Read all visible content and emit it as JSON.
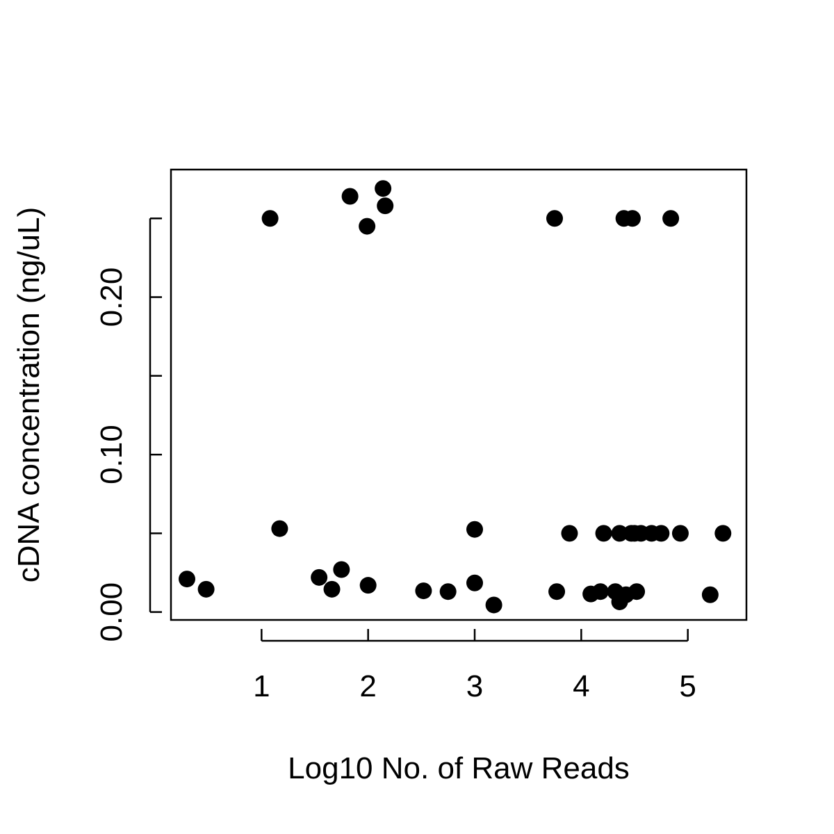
{
  "chart_data": {
    "type": "scatter",
    "title": "",
    "xlabel": "Log10 No. of Raw Reads",
    "ylabel": "cDNA concentration (ng/uL)",
    "xlim": [
      0.15,
      5.55
    ],
    "ylim": [
      -0.005,
      0.281
    ],
    "x_ticks": [
      1,
      2,
      3,
      4,
      5
    ],
    "x_tick_labels": [
      "1",
      "2",
      "3",
      "4",
      "5"
    ],
    "y_ticks": [
      0.0,
      0.05,
      0.1,
      0.15,
      0.2,
      0.25
    ],
    "y_tick_labels": [
      "0.00",
      "",
      "0.10",
      "",
      "0.20",
      ""
    ],
    "grid": false,
    "point_color": "#000000",
    "points": [
      {
        "x": 0.3,
        "y": 0.021
      },
      {
        "x": 0.48,
        "y": 0.0145
      },
      {
        "x": 1.08,
        "y": 0.25
      },
      {
        "x": 1.17,
        "y": 0.053
      },
      {
        "x": 1.54,
        "y": 0.022
      },
      {
        "x": 1.66,
        "y": 0.0145
      },
      {
        "x": 1.75,
        "y": 0.027
      },
      {
        "x": 1.83,
        "y": 0.264
      },
      {
        "x": 1.99,
        "y": 0.245
      },
      {
        "x": 2.0,
        "y": 0.017
      },
      {
        "x": 2.14,
        "y": 0.269
      },
      {
        "x": 2.16,
        "y": 0.258
      },
      {
        "x": 2.52,
        "y": 0.0135
      },
      {
        "x": 2.75,
        "y": 0.013
      },
      {
        "x": 3.0,
        "y": 0.0525
      },
      {
        "x": 3.0,
        "y": 0.0185
      },
      {
        "x": 3.18,
        "y": 0.0045
      },
      {
        "x": 3.75,
        "y": 0.25
      },
      {
        "x": 3.77,
        "y": 0.013
      },
      {
        "x": 3.89,
        "y": 0.05
      },
      {
        "x": 4.09,
        "y": 0.0115
      },
      {
        "x": 4.18,
        "y": 0.013
      },
      {
        "x": 4.21,
        "y": 0.05
      },
      {
        "x": 4.32,
        "y": 0.013
      },
      {
        "x": 4.36,
        "y": 0.05
      },
      {
        "x": 4.36,
        "y": 0.0065
      },
      {
        "x": 4.4,
        "y": 0.25
      },
      {
        "x": 4.42,
        "y": 0.011
      },
      {
        "x": 4.47,
        "y": 0.05
      },
      {
        "x": 4.48,
        "y": 0.25
      },
      {
        "x": 4.5,
        "y": 0.05
      },
      {
        "x": 4.52,
        "y": 0.013
      },
      {
        "x": 4.56,
        "y": 0.05
      },
      {
        "x": 4.66,
        "y": 0.05
      },
      {
        "x": 4.75,
        "y": 0.05
      },
      {
        "x": 4.84,
        "y": 0.25
      },
      {
        "x": 4.93,
        "y": 0.05
      },
      {
        "x": 5.21,
        "y": 0.011
      },
      {
        "x": 5.33,
        "y": 0.05
      }
    ]
  }
}
